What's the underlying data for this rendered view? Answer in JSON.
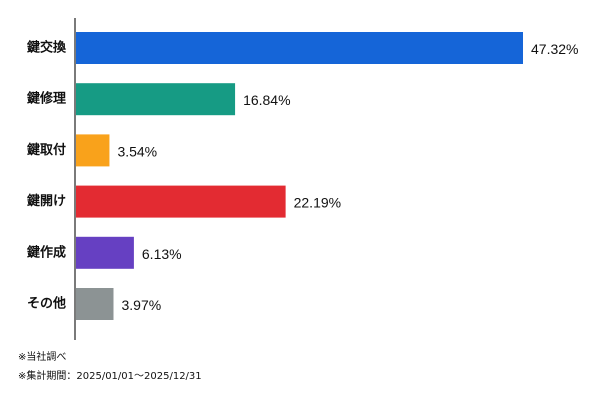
{
  "chart_data": {
    "type": "bar",
    "orientation": "horizontal",
    "categories": [
      "鍵交換",
      "鍵修理",
      "鍵取付",
      "鍵開け",
      "鍵作成",
      "その他"
    ],
    "values": [
      47.32,
      16.84,
      3.54,
      22.19,
      6.13,
      3.97
    ],
    "value_labels": [
      "47.32%",
      "16.84%",
      "3.54%",
      "22.19%",
      "6.13%",
      "3.97%"
    ],
    "colors": [
      "#1565d8",
      "#169b84",
      "#f9a21b",
      "#e32b32",
      "#6640c2",
      "#8c9394"
    ],
    "xlim": [
      0,
      47.32
    ],
    "grid": false,
    "legend": "none",
    "title": "",
    "xlabel": "",
    "ylabel": ""
  },
  "notes": {
    "source": "※当社調べ",
    "period": "※集計期間：2025/01/01～2025/12/31"
  }
}
